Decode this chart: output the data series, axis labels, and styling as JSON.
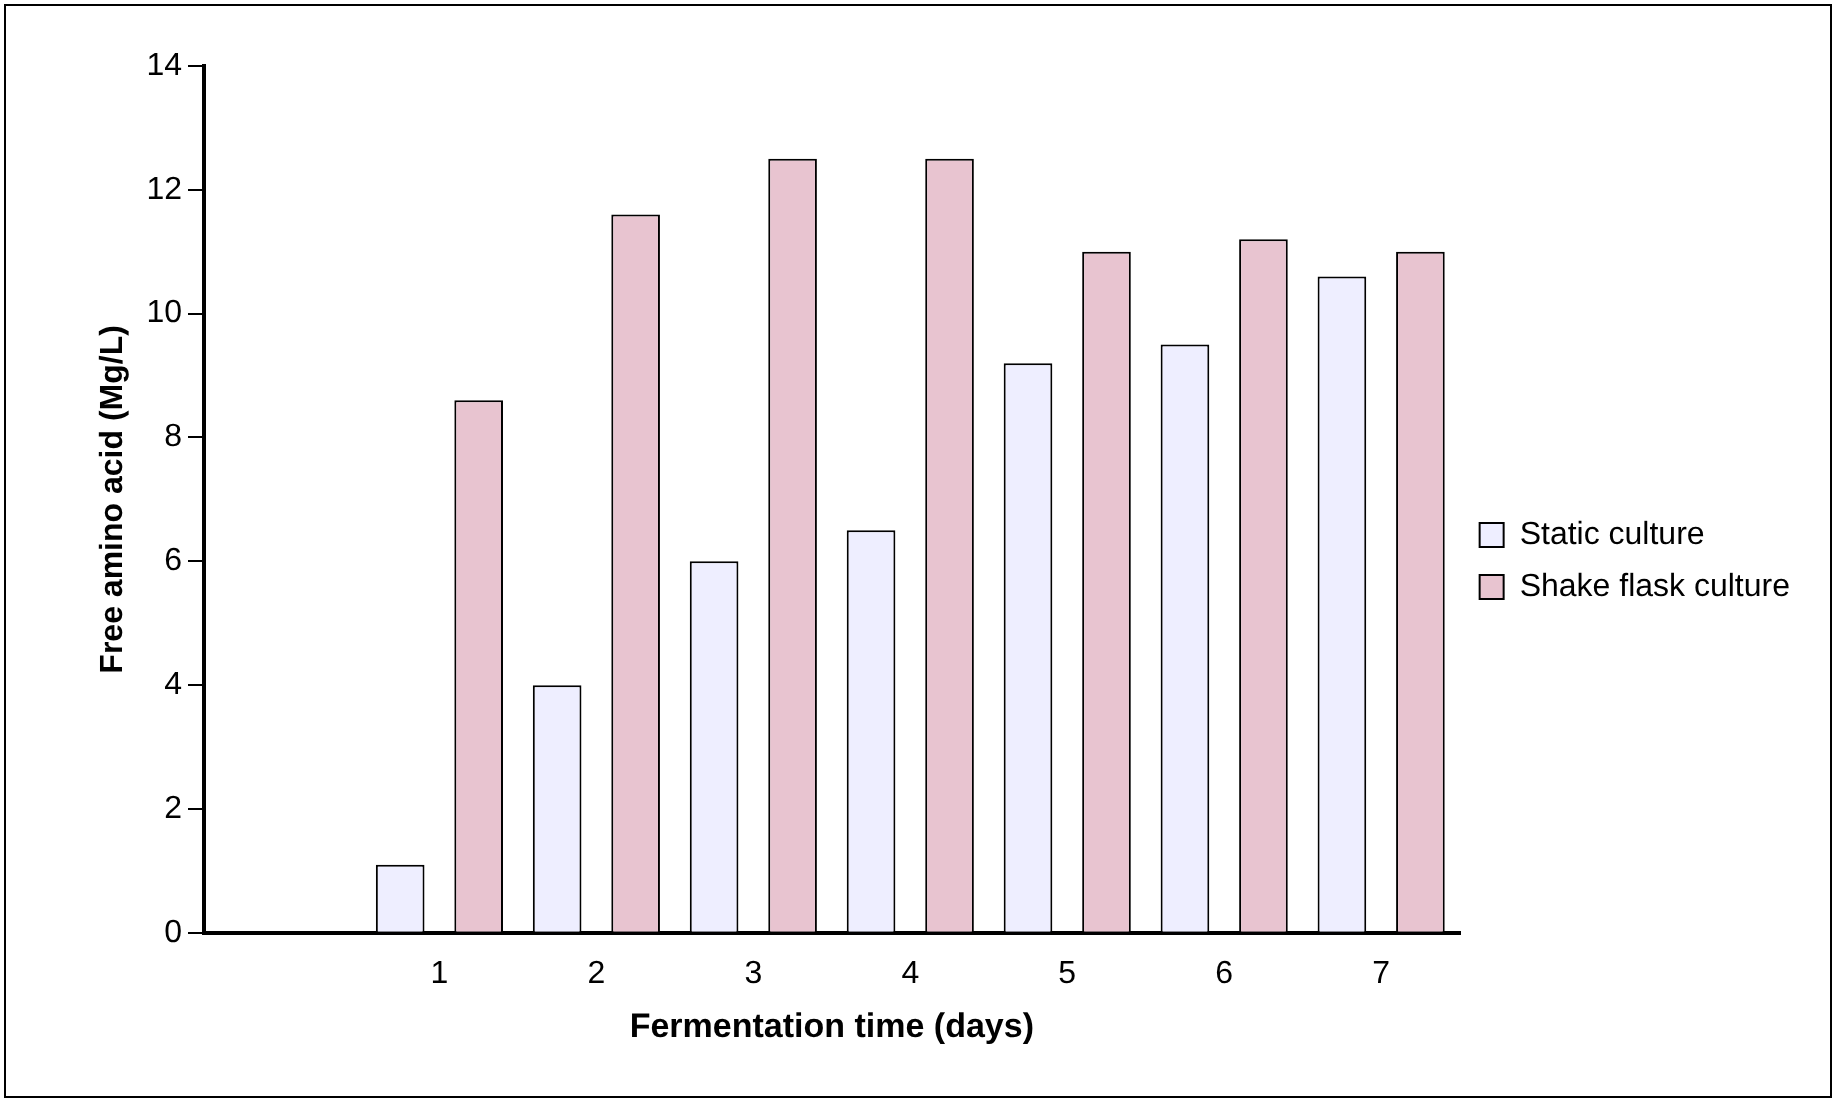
{
  "chart_data": {
    "type": "bar",
    "xlabel": "Fermentation time (days)",
    "ylabel": "Free amino acid (Mg/L)",
    "categories": [
      null,
      "1",
      "2",
      "3",
      "4",
      "5",
      "6",
      "7"
    ],
    "series": [
      {
        "name": "Static culture",
        "color": "#eeeeff",
        "values": [
          null,
          1.1,
          4.0,
          6.0,
          6.5,
          9.2,
          9.5,
          10.6
        ]
      },
      {
        "name": "Shake flask culture",
        "color": "#e8c4d0",
        "values": [
          null,
          8.6,
          11.6,
          12.5,
          12.5,
          11.0,
          11.2,
          11.0
        ]
      }
    ],
    "ylim": [
      0,
      14
    ],
    "yticks": [
      0,
      2,
      4,
      6,
      8,
      10,
      12,
      14
    ],
    "grid": false,
    "legend": "right"
  }
}
